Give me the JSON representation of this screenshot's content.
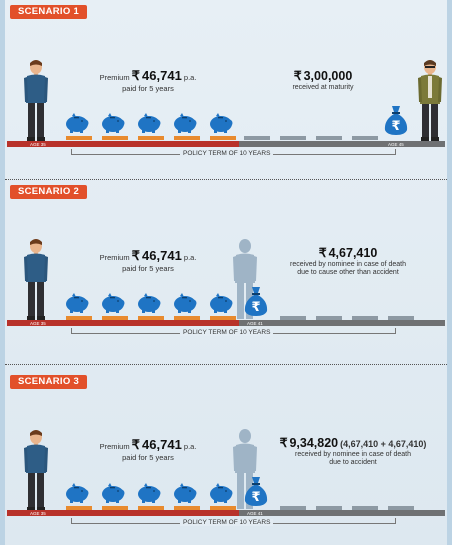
{
  "currency_symbol": "₹",
  "scenarios": [
    {
      "badge": "SCENARIO 1",
      "premium_prefix": "Premium",
      "premium_amount": "46,741",
      "premium_suffix": "p.a.",
      "premium_note": "paid for 5 years",
      "benefit_amount": "3,00,000",
      "benefit_extra": "",
      "benefit_note_1": "received at maturity",
      "benefit_note_2": "",
      "age_start": "AGE 35",
      "age_end": "AGE 45",
      "term_label": "POLICY TERM OF 10 YEARS"
    },
    {
      "badge": "SCENARIO 2",
      "premium_prefix": "Premium",
      "premium_amount": "46,741",
      "premium_suffix": "p.a.",
      "premium_note": "paid for 5 years",
      "benefit_amount": "4,67,410",
      "benefit_extra": "",
      "benefit_note_1": "received by nominee in case of death",
      "benefit_note_2": "due to cause other than accident",
      "age_start": "AGE 35",
      "age_end": "AGE 41",
      "term_label": "POLICY TERM OF 10 YEARS"
    },
    {
      "badge": "SCENARIO 3",
      "premium_prefix": "Premium",
      "premium_amount": "46,741",
      "premium_suffix": "p.a.",
      "premium_note": "paid for 5 years",
      "benefit_amount": "9,34,820",
      "benefit_extra": "(4,67,410 + 4,67,410)",
      "benefit_note_1": "received by nominee in case of death",
      "benefit_note_2": "due to accident",
      "age_start": "AGE 35",
      "age_end": "AGE 41",
      "term_label": "POLICY TERM OF 10 YEARS"
    }
  ],
  "colors": {
    "badge": "#e2502a",
    "paid_bar": "#b8322a",
    "unpaid_bar": "#6f7173",
    "premium_slot": "#e88a2e",
    "empty_slot": "#8d99a3",
    "piggy": "#1f74c4",
    "bag": "#1f74c4"
  },
  "icons": [
    "man-standing-icon",
    "piggy-bank-icon",
    "money-bag-icon",
    "ghost-person-icon"
  ]
}
